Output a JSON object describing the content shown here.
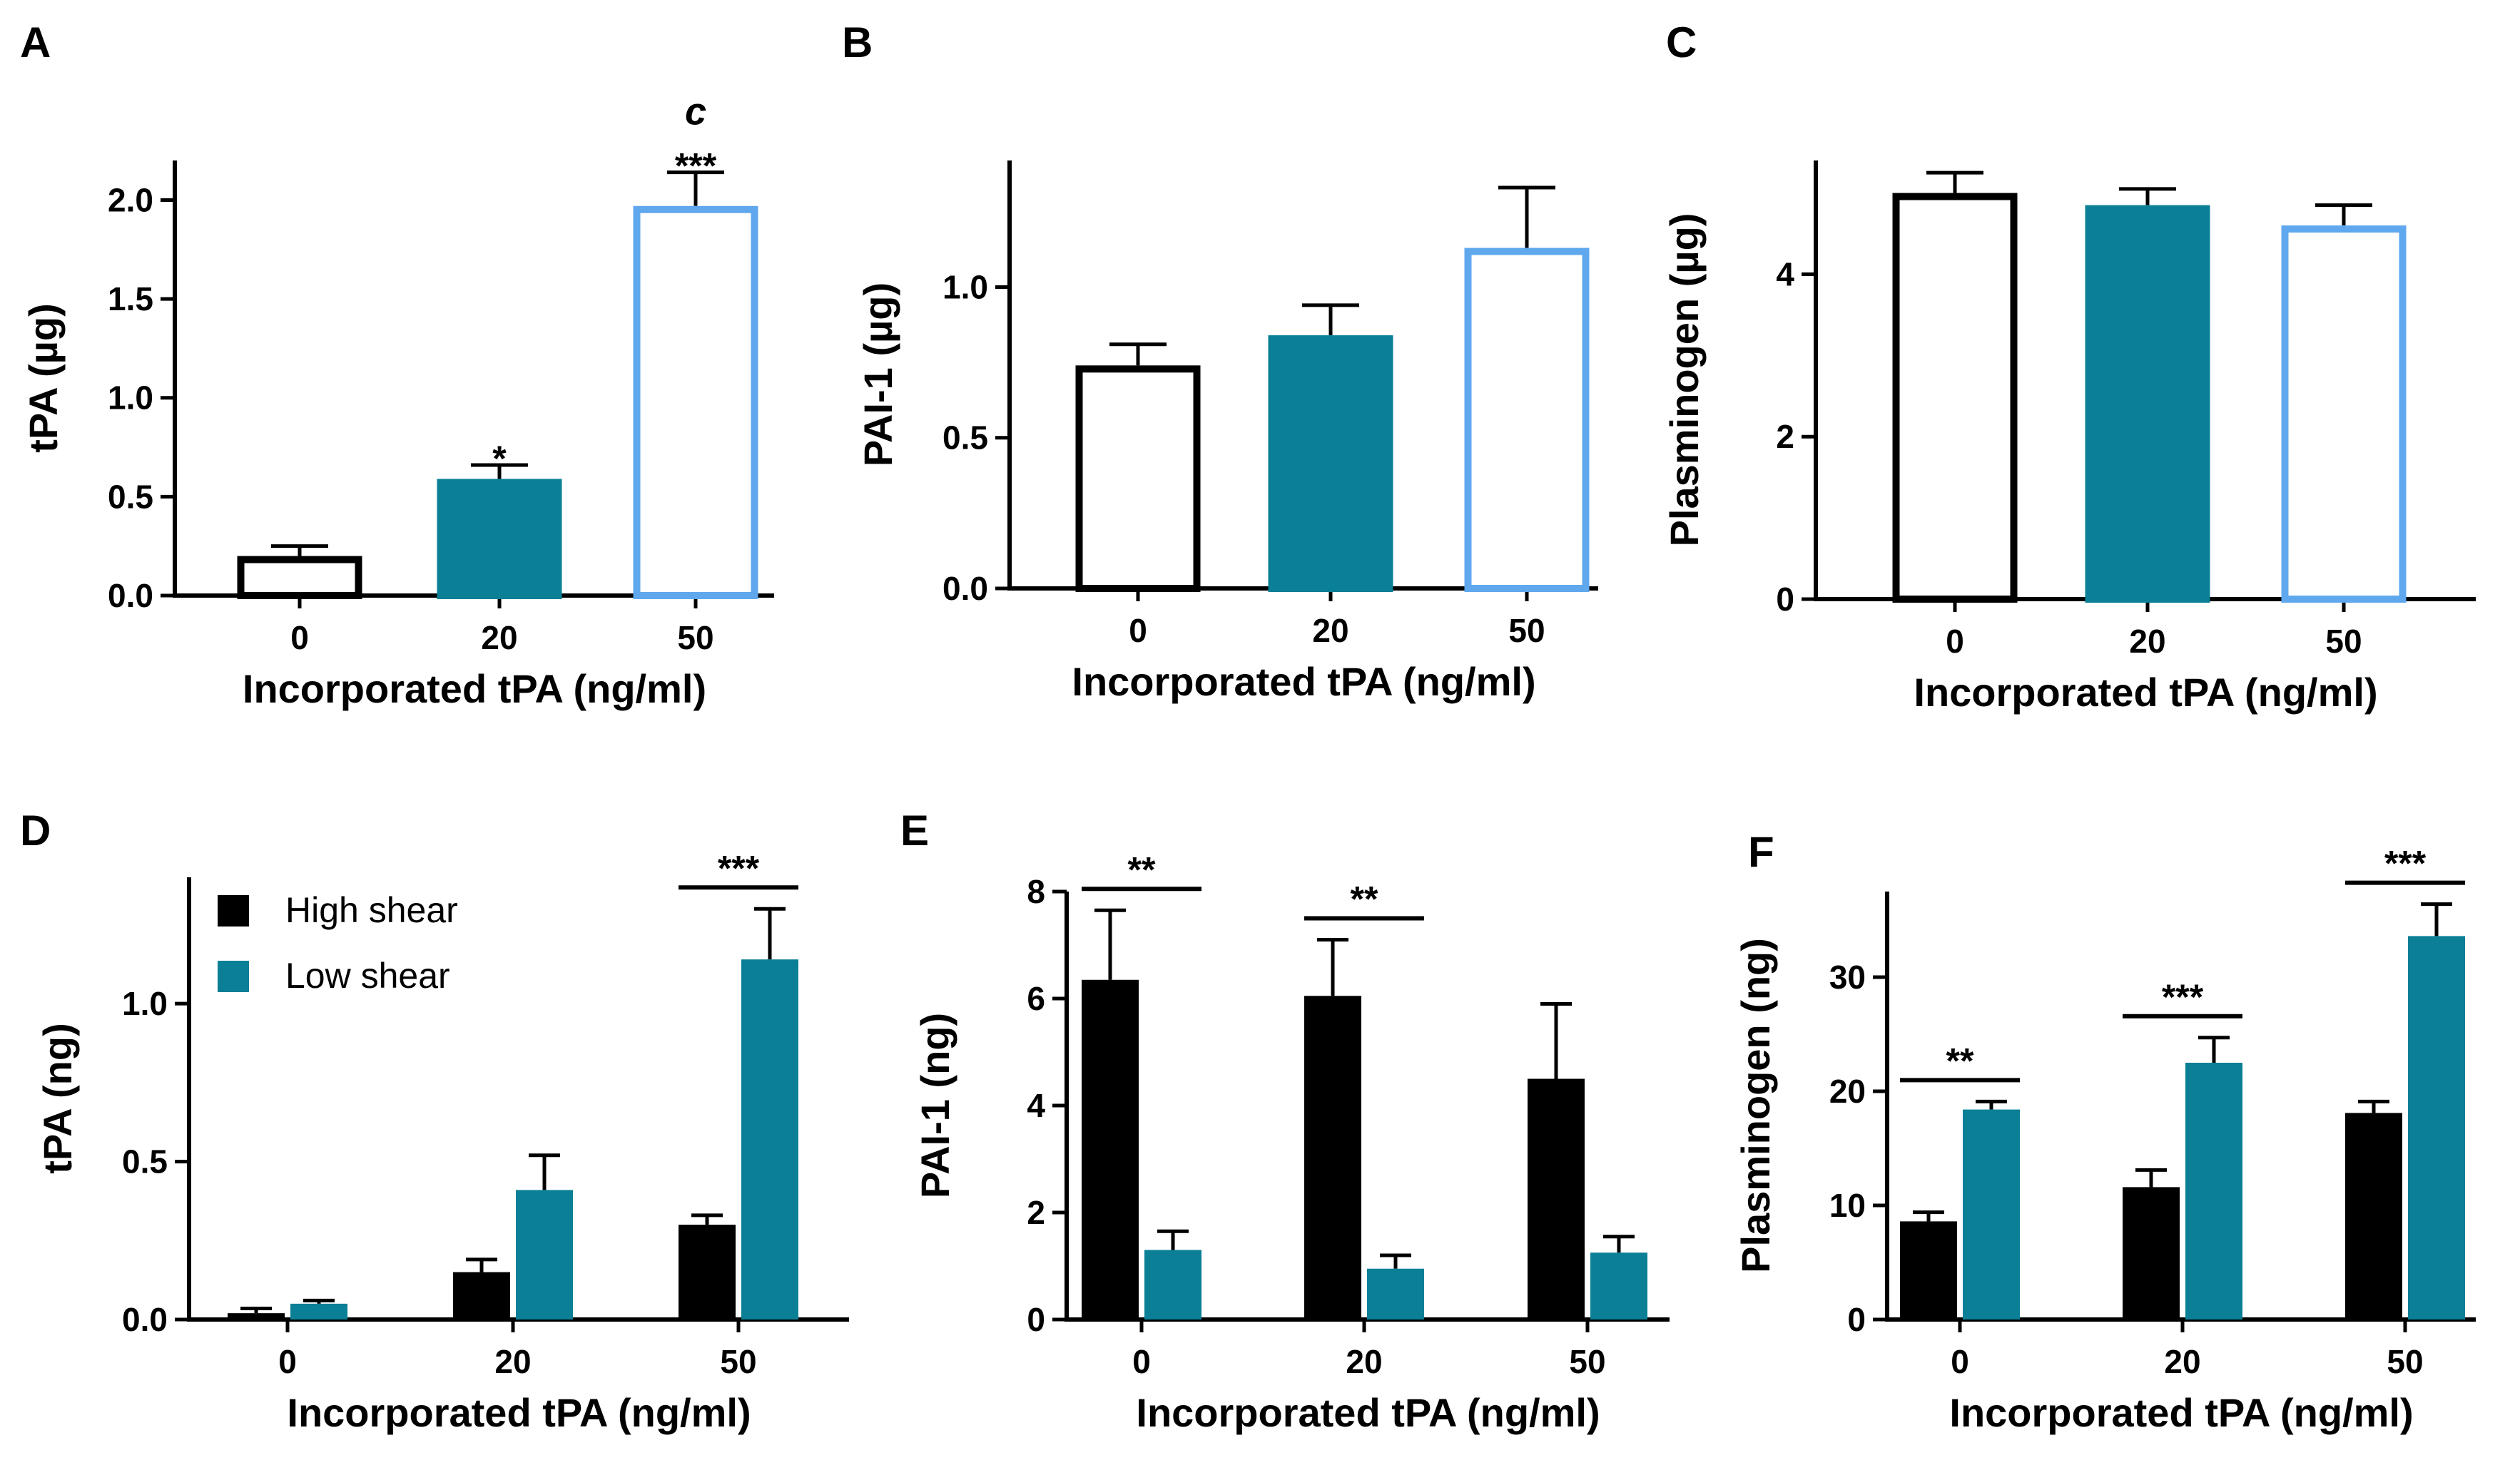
{
  "colors": {
    "black": "#000000",
    "teal": "#0a7f96",
    "lightblue": "#5fa8ee",
    "white": "#ffffff"
  },
  "chart_data": [
    {
      "panel": "A",
      "type": "bar",
      "categories": [
        "0",
        "20",
        "50"
      ],
      "values": [
        0.2,
        0.59,
        1.97
      ],
      "errors": [
        0.05,
        0.07,
        0.17
      ],
      "bar_styles": [
        "outline-black",
        "filled-teal",
        "outline-lightblue"
      ],
      "ylabel": "tPA (µg)",
      "xlabel": "Incorporated tPA (ng/ml)",
      "ylim": [
        0,
        2.2
      ],
      "yticks": [
        "0.0",
        "0.5",
        "1.0",
        "1.5",
        "2.0"
      ],
      "ytick_values": [
        0,
        0.5,
        1.0,
        1.5,
        2.0
      ],
      "annotations": [
        {
          "category": 1,
          "text": "*"
        },
        {
          "category": 2,
          "text": "***"
        },
        {
          "category": 2,
          "text": "c"
        }
      ]
    },
    {
      "panel": "B",
      "type": "bar",
      "categories": [
        "0",
        "20",
        "50"
      ],
      "values": [
        0.74,
        0.84,
        1.13
      ],
      "errors": [
        0.07,
        0.1,
        0.2
      ],
      "bar_styles": [
        "outline-black",
        "filled-teal",
        "outline-lightblue"
      ],
      "ylabel": "PAI-1 (µg)",
      "xlabel": "Incorporated tPA (ng/ml)",
      "ylim": [
        0,
        1.42
      ],
      "yticks": [
        "0.0",
        "0.5",
        "1.0"
      ],
      "ytick_values": [
        0,
        0.5,
        1.0
      ],
      "annotations": []
    },
    {
      "panel": "C",
      "type": "bar",
      "categories": [
        "0",
        "20",
        "50"
      ],
      "values": [
        5.0,
        4.85,
        4.6
      ],
      "errors": [
        0.25,
        0.2,
        0.25
      ],
      "bar_styles": [
        "outline-black",
        "filled-teal",
        "outline-lightblue"
      ],
      "ylabel": "Plasminogen (µg)",
      "xlabel": "Incorporated tPA (ng/ml)",
      "ylim": [
        0,
        5.4
      ],
      "yticks": [
        "0",
        "2",
        "4"
      ],
      "ytick_values": [
        0,
        2,
        4
      ],
      "annotations": []
    },
    {
      "panel": "D",
      "type": "bar",
      "categories": [
        "0",
        "20",
        "50"
      ],
      "series": [
        {
          "name": "High shear",
          "values": [
            0.02,
            0.15,
            0.3
          ],
          "errors": [
            0.015,
            0.04,
            0.03
          ]
        },
        {
          "name": "Low shear",
          "values": [
            0.05,
            0.41,
            1.14
          ],
          "errors": [
            0.01,
            0.11,
            0.16
          ]
        }
      ],
      "ylabel": "tPA (ng)",
      "xlabel": "Incorporated tPA (ng/ml)",
      "ylim": [
        0,
        1.4
      ],
      "yticks": [
        "0.0",
        "0.5",
        "1.0"
      ],
      "ytick_values": [
        0,
        0.5,
        1.0
      ],
      "legend": {
        "placement": "top-left",
        "entries": [
          "High shear",
          "Low shear"
        ]
      },
      "significance": [
        {
          "category": 2,
          "text": "***"
        }
      ]
    },
    {
      "panel": "E",
      "type": "bar",
      "categories": [
        "0",
        "20",
        "50"
      ],
      "series": [
        {
          "name": "High shear",
          "values": [
            6.35,
            6.05,
            4.5
          ],
          "errors": [
            1.3,
            1.05,
            1.4
          ]
        },
        {
          "name": "Low shear",
          "values": [
            1.3,
            0.95,
            1.25
          ],
          "errors": [
            0.35,
            0.25,
            0.3
          ]
        }
      ],
      "ylabel": "PAI-1 (ng)",
      "xlabel": "Incorporated tPA (ng/ml)",
      "ylim": [
        0,
        8
      ],
      "yticks": [
        "0",
        "2",
        "4",
        "6",
        "8"
      ],
      "ytick_values": [
        0,
        2,
        4,
        6,
        8
      ],
      "significance": [
        {
          "category": 0,
          "text": "**"
        },
        {
          "category": 1,
          "text": "**"
        }
      ]
    },
    {
      "panel": "F",
      "type": "bar",
      "categories": [
        "0",
        "20",
        "50"
      ],
      "series": [
        {
          "name": "High shear",
          "values": [
            8.6,
            11.6,
            18.1
          ],
          "errors": [
            0.8,
            1.5,
            1.0
          ]
        },
        {
          "name": "Low shear",
          "values": [
            18.4,
            22.5,
            33.6
          ],
          "errors": [
            0.7,
            2.2,
            2.8
          ]
        }
      ],
      "ylabel": "Plasminogen (ng)",
      "xlabel": "Incorporated tPA (ng/ml)",
      "ylim": [
        0,
        37.5
      ],
      "yticks": [
        "0",
        "10",
        "20",
        "30"
      ],
      "ytick_values": [
        0,
        10,
        20,
        30
      ],
      "significance": [
        {
          "category": 0,
          "text": "**"
        },
        {
          "category": 1,
          "text": "***"
        },
        {
          "category": 2,
          "text": "***"
        }
      ]
    }
  ]
}
